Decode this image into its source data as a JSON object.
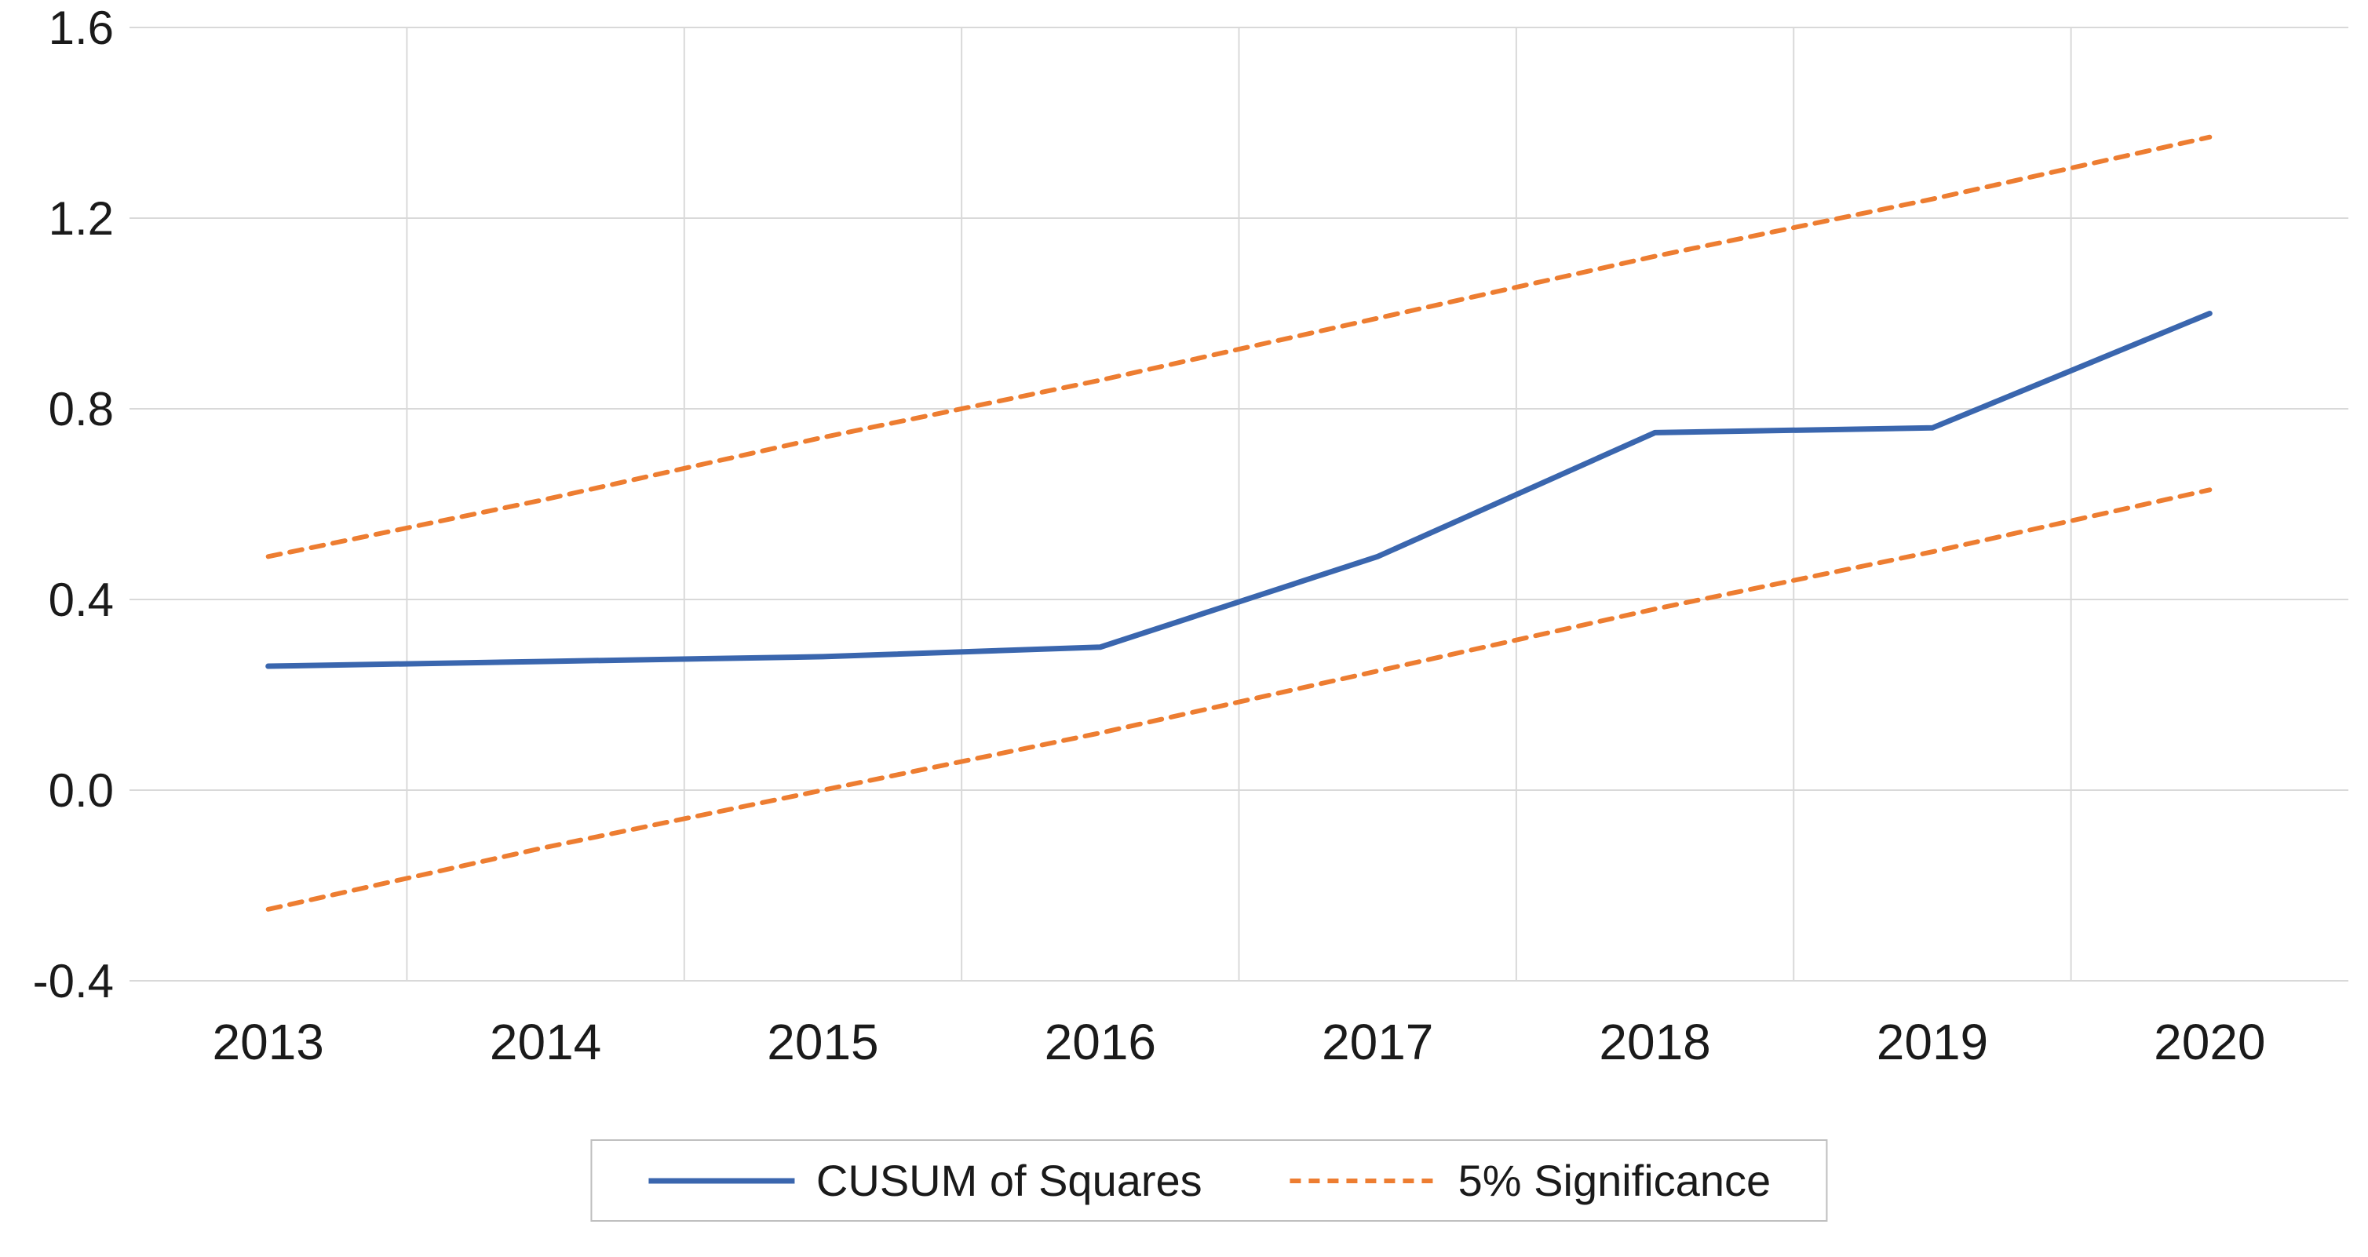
{
  "chart_data": {
    "type": "line",
    "x": [
      2013,
      2014,
      2015,
      2016,
      2017,
      2018,
      2019,
      2020
    ],
    "xtick_labels": [
      "2013",
      "2014",
      "2015",
      "2016",
      "2017",
      "2018",
      "2019",
      "2020"
    ],
    "yticks": [
      1.6,
      1.2,
      0.8,
      0.4,
      0.0,
      -0.4
    ],
    "ytick_labels": [
      "1.6",
      "1.2",
      "0.8",
      "0.4",
      "0.0",
      "-0.4"
    ],
    "ylim": [
      -0.4,
      1.6
    ],
    "grid": true,
    "title": "",
    "xlabel": "",
    "ylabel": "",
    "series": [
      {
        "name": "CUSUM of Squares",
        "style": "solid",
        "color": "#3a66ae",
        "values": [
          0.26,
          0.27,
          0.28,
          0.3,
          0.49,
          0.75,
          0.76,
          1.0
        ]
      },
      {
        "name": "5% Significance (upper band)",
        "style": "dashed",
        "color": "#ed7d31",
        "values": [
          0.49,
          0.61,
          0.74,
          0.86,
          0.99,
          1.12,
          1.24,
          1.37
        ]
      },
      {
        "name": "5% Significance (lower band)",
        "style": "dashed",
        "color": "#ed7d31",
        "values": [
          -0.25,
          -0.12,
          0.0,
          0.12,
          0.25,
          0.38,
          0.5,
          0.63
        ]
      }
    ],
    "legend": {
      "position": "bottom",
      "entries": [
        {
          "label": "CUSUM of Squares",
          "style": "solid",
          "color": "#3a66ae"
        },
        {
          "label": "5% Significance",
          "style": "dashed",
          "color": "#ed7d31"
        }
      ]
    },
    "colors": {
      "grid": "#d9d9d9",
      "background": "#ffffff",
      "text": "#1a1a1a"
    }
  }
}
